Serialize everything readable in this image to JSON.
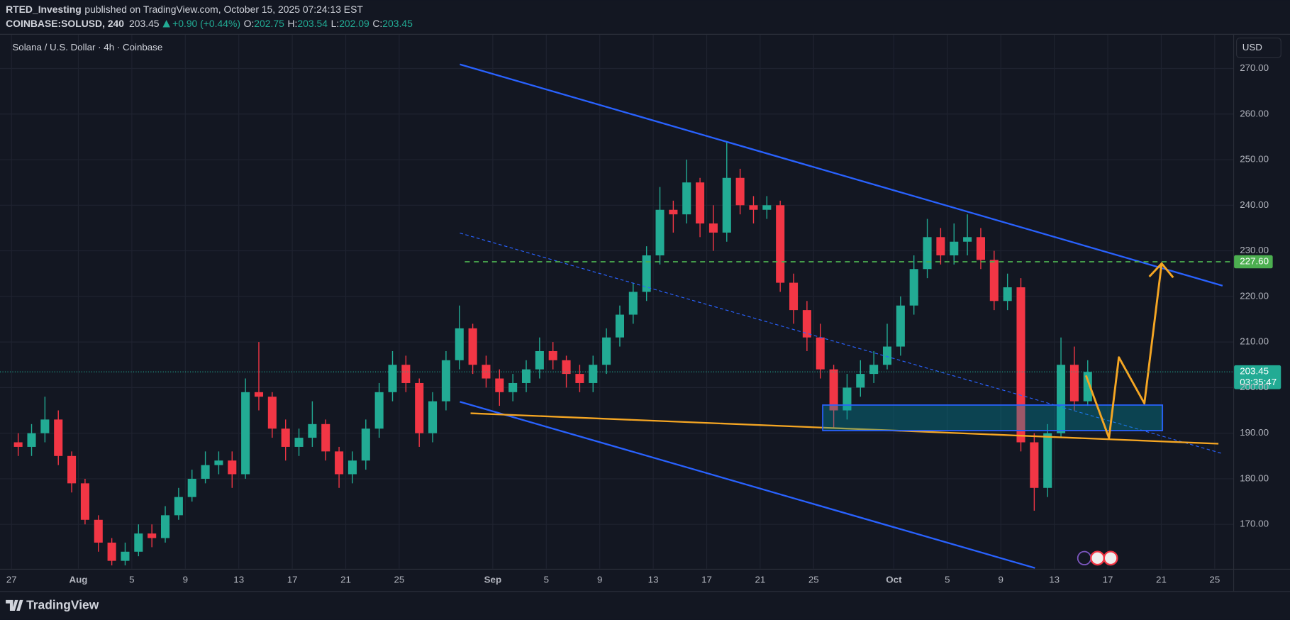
{
  "header": {
    "author": "RTED_Investing",
    "published": "published on TradingView.com, October 15, 2025 07:24:13 EST",
    "symbol": "COINBASE:SOLUSD, 240",
    "last": "203.45",
    "change": "+0.90 (+0.44%)",
    "ohlc": [
      {
        "key": "O:",
        "value": "202.75"
      },
      {
        "key": "H:",
        "value": "203.54"
      },
      {
        "key": "L:",
        "value": "202.09"
      },
      {
        "key": "C:",
        "value": "203.45"
      }
    ]
  },
  "chart_data": {
    "type": "candlestick",
    "title": "Solana / U.S. Dollar · 4h · Coinbase",
    "currency": "USD",
    "x": [
      "2025-07-27",
      "2025-07-28",
      "2025-07-29",
      "2025-07-30",
      "2025-07-31",
      "2025-08-01",
      "2025-08-02",
      "2025-08-03",
      "2025-08-04",
      "2025-08-05",
      "2025-08-06",
      "2025-08-07",
      "2025-08-08",
      "2025-08-09",
      "2025-08-10",
      "2025-08-11",
      "2025-08-12",
      "2025-08-13",
      "2025-08-14",
      "2025-08-15",
      "2025-08-16",
      "2025-08-17",
      "2025-08-18",
      "2025-08-19",
      "2025-08-20",
      "2025-08-21",
      "2025-08-22",
      "2025-08-23",
      "2025-08-24",
      "2025-08-25",
      "2025-08-26",
      "2025-08-27",
      "2025-08-28",
      "2025-08-29",
      "2025-08-30",
      "2025-08-31",
      "2025-09-01",
      "2025-09-02",
      "2025-09-03",
      "2025-09-04",
      "2025-09-05",
      "2025-09-06",
      "2025-09-07",
      "2025-09-08",
      "2025-09-09",
      "2025-09-10",
      "2025-09-11",
      "2025-09-12",
      "2025-09-13",
      "2025-09-14",
      "2025-09-15",
      "2025-09-16",
      "2025-09-17",
      "2025-09-18",
      "2025-09-19",
      "2025-09-20",
      "2025-09-21",
      "2025-09-22",
      "2025-09-23",
      "2025-09-24",
      "2025-09-25",
      "2025-09-26",
      "2025-09-27",
      "2025-09-28",
      "2025-09-29",
      "2025-09-30",
      "2025-10-01",
      "2025-10-02",
      "2025-10-03",
      "2025-10-04",
      "2025-10-05",
      "2025-10-06",
      "2025-10-07",
      "2025-10-08",
      "2025-10-09",
      "2025-10-10",
      "2025-10-11",
      "2025-10-12",
      "2025-10-13",
      "2025-10-14",
      "2025-10-15"
    ],
    "open": [
      188,
      187,
      190,
      193,
      185,
      179,
      171,
      166,
      162,
      164,
      168,
      167,
      172,
      176,
      180,
      183,
      184,
      181,
      199,
      198,
      191,
      187,
      189,
      192,
      186,
      181,
      184,
      191,
      199,
      205,
      201,
      190,
      197,
      206,
      213,
      205,
      202,
      199,
      201,
      204,
      208,
      206,
      203,
      201,
      205,
      211,
      216,
      221,
      229,
      239,
      238,
      245,
      236,
      234,
      246,
      240,
      239,
      240,
      223,
      217,
      211,
      204,
      195,
      200,
      203,
      205,
      209,
      218,
      226,
      233,
      229,
      232,
      233,
      228,
      219,
      222,
      188,
      178,
      190,
      205,
      197
    ],
    "high": [
      190,
      192,
      198,
      195,
      186,
      180,
      172,
      167,
      166,
      170,
      170,
      174,
      178,
      182,
      186,
      186,
      186,
      202,
      210,
      199,
      193,
      191,
      197,
      193,
      187,
      186,
      193,
      201,
      208,
      207,
      202,
      199,
      208,
      218,
      214,
      207,
      204,
      203,
      206,
      211,
      210,
      207,
      205,
      207,
      213,
      218,
      223,
      231,
      244,
      241,
      250,
      246,
      240,
      254,
      248,
      242,
      242,
      241,
      225,
      219,
      214,
      205,
      203,
      206,
      208,
      214,
      220,
      229,
      237,
      235,
      236,
      238,
      235,
      230,
      225,
      224,
      190,
      192,
      211,
      209,
      206
    ],
    "low": [
      185,
      185,
      188,
      183,
      177,
      170,
      164,
      161,
      161,
      163,
      165,
      166,
      171,
      175,
      179,
      181,
      178,
      180,
      195,
      189,
      184,
      185,
      187,
      184,
      178,
      179,
      182,
      189,
      197,
      199,
      187,
      188,
      195,
      204,
      203,
      200,
      196,
      197,
      199,
      202,
      204,
      200,
      199,
      199,
      203,
      209,
      214,
      219,
      227,
      234,
      236,
      233,
      230,
      232,
      238,
      236,
      237,
      221,
      214,
      208,
      202,
      191,
      193,
      198,
      201,
      204,
      207,
      216,
      224,
      227,
      227,
      229,
      226,
      217,
      217,
      186,
      173,
      176,
      189,
      195,
      196
    ],
    "close": [
      187,
      190,
      193,
      185,
      179,
      171,
      166,
      162,
      164,
      168,
      167,
      172,
      176,
      180,
      183,
      184,
      181,
      199,
      198,
      191,
      187,
      189,
      192,
      186,
      181,
      184,
      191,
      199,
      205,
      201,
      190,
      197,
      206,
      213,
      205,
      202,
      199,
      201,
      204,
      208,
      206,
      203,
      201,
      205,
      211,
      216,
      221,
      229,
      239,
      238,
      245,
      236,
      234,
      246,
      240,
      239,
      240,
      223,
      217,
      211,
      204,
      195,
      200,
      203,
      205,
      209,
      218,
      226,
      233,
      229,
      232,
      233,
      228,
      219,
      222,
      188,
      178,
      190,
      205,
      197,
      203.45
    ],
    "up_color": "#22ab94",
    "down_color": "#f23645",
    "xlim": [
      "2025-07-26",
      "2025-10-26"
    ],
    "xticks": [
      {
        "value": "2025-07-27",
        "label": "27"
      },
      {
        "value": "2025-08-01",
        "label": "Aug"
      },
      {
        "value": "2025-08-05",
        "label": "5"
      },
      {
        "value": "2025-08-09",
        "label": "9"
      },
      {
        "value": "2025-08-13",
        "label": "13"
      },
      {
        "value": "2025-08-17",
        "label": "17"
      },
      {
        "value": "2025-08-21",
        "label": "21"
      },
      {
        "value": "2025-08-25",
        "label": "25"
      },
      {
        "value": "2025-09-01",
        "label": "Sep"
      },
      {
        "value": "2025-09-05",
        "label": "5"
      },
      {
        "value": "2025-09-09",
        "label": "9"
      },
      {
        "value": "2025-09-13",
        "label": "13"
      },
      {
        "value": "2025-09-17",
        "label": "17"
      },
      {
        "value": "2025-09-21",
        "label": "21"
      },
      {
        "value": "2025-09-25",
        "label": "25"
      },
      {
        "value": "2025-10-01",
        "label": "Oct"
      },
      {
        "value": "2025-10-05",
        "label": "5"
      },
      {
        "value": "2025-10-09",
        "label": "9"
      },
      {
        "value": "2025-10-13",
        "label": "13"
      },
      {
        "value": "2025-10-17",
        "label": "17"
      },
      {
        "value": "2025-10-21",
        "label": "21"
      },
      {
        "value": "2025-10-25",
        "label": "25"
      }
    ],
    "ylim": [
      160,
      277
    ],
    "yticks": [
      {
        "value": 170,
        "label": "170.00"
      },
      {
        "value": 180,
        "label": "180.00"
      },
      {
        "value": 190,
        "label": "190.00"
      },
      {
        "value": 200,
        "label": "200.00"
      },
      {
        "value": 210,
        "label": "210.00"
      },
      {
        "value": 220,
        "label": "220.00"
      },
      {
        "value": 230,
        "label": "230.00"
      },
      {
        "value": 240,
        "label": "240.00"
      },
      {
        "value": 250,
        "label": "250.00"
      },
      {
        "value": 260,
        "label": "260.00"
      },
      {
        "value": 270,
        "label": "270.00"
      }
    ],
    "grid": true,
    "target": {
      "value": 227.6,
      "label": "227.60",
      "color": "#4caf50"
    },
    "last_price": {
      "value": 203.45,
      "label": "203.45",
      "countdown": "03:35:47"
    }
  },
  "footer": {
    "brand": "TradingView"
  }
}
